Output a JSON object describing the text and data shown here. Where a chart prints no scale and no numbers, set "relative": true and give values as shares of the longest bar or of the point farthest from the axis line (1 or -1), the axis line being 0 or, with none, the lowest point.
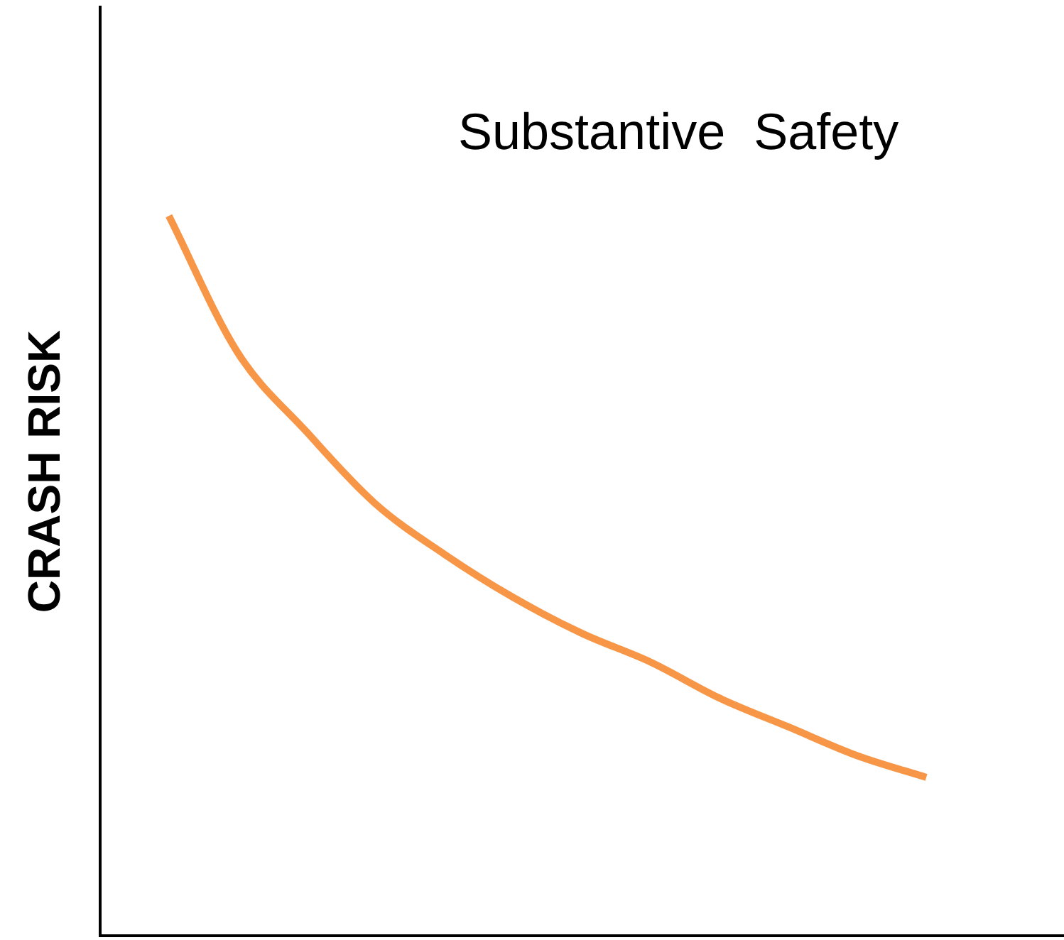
{
  "chart_data": {
    "type": "line",
    "title": "Substantive  Safety",
    "ylabel": "CRASH RISK",
    "relative": true,
    "marker": "none",
    "categories": [
      null,
      null,
      null,
      null,
      null,
      null,
      null,
      null,
      null,
      null,
      null,
      null,
      null,
      null,
      null
    ],
    "series": [
      {
        "color": "#f79646",
        "values": [
          null,
          1,
          0.81,
          0.7,
          0.6,
          0.53,
          0.47,
          0.42,
          0.38,
          0.33,
          0.29,
          0.25,
          0.22,
          null,
          null
        ]
      }
    ]
  }
}
